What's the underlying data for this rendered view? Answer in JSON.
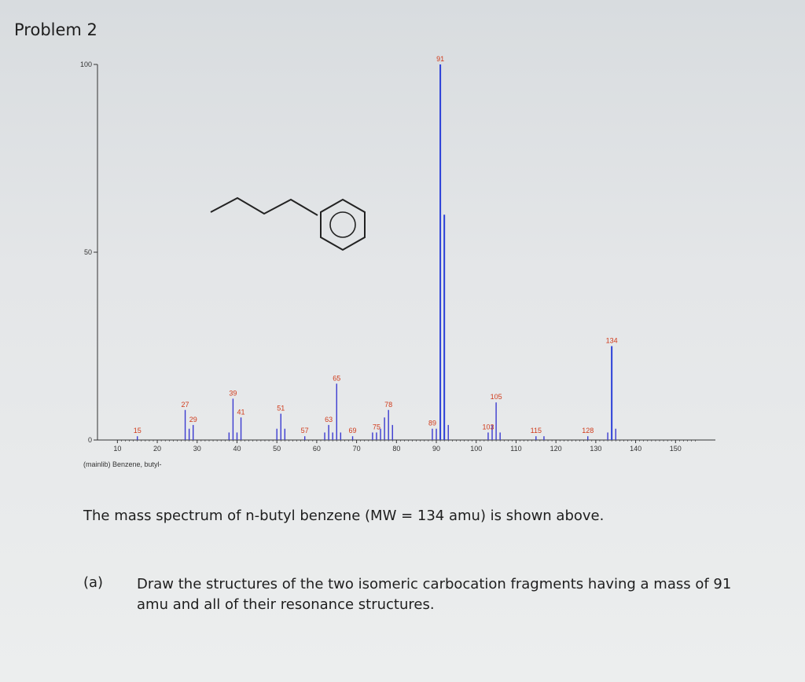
{
  "header": {
    "title": "Problem 2"
  },
  "chart_data": {
    "type": "bar",
    "title": "",
    "xlabel": "",
    "ylabel": "",
    "xlim": [
      5,
      160
    ],
    "ylim": [
      0,
      100
    ],
    "x_ticks": [
      10,
      20,
      30,
      40,
      50,
      60,
      70,
      80,
      90,
      100,
      110,
      120,
      130,
      140,
      150
    ],
    "y_ticks": [
      0,
      50,
      100
    ],
    "library_label": "(mainlib) Benzene, butyl-",
    "colors": {
      "major": "#2a3fd8",
      "minor": "#3a3ad0",
      "label": "#d03a1a",
      "axis": "#333333"
    },
    "peaks": [
      {
        "mz": 15,
        "intensity": 1,
        "label": "15"
      },
      {
        "mz": 27,
        "intensity": 8,
        "label": "27"
      },
      {
        "mz": 28,
        "intensity": 3
      },
      {
        "mz": 29,
        "intensity": 4,
        "label": "29"
      },
      {
        "mz": 38,
        "intensity": 2
      },
      {
        "mz": 39,
        "intensity": 11,
        "label": "39"
      },
      {
        "mz": 40,
        "intensity": 2
      },
      {
        "mz": 41,
        "intensity": 6,
        "label": "41"
      },
      {
        "mz": 50,
        "intensity": 3
      },
      {
        "mz": 51,
        "intensity": 7,
        "label": "51"
      },
      {
        "mz": 52,
        "intensity": 3
      },
      {
        "mz": 57,
        "intensity": 1,
        "label": "57"
      },
      {
        "mz": 62,
        "intensity": 2
      },
      {
        "mz": 63,
        "intensity": 4,
        "label": "63"
      },
      {
        "mz": 64,
        "intensity": 2
      },
      {
        "mz": 65,
        "intensity": 15,
        "label": "65"
      },
      {
        "mz": 66,
        "intensity": 2
      },
      {
        "mz": 69,
        "intensity": 1,
        "label": "69"
      },
      {
        "mz": 74,
        "intensity": 2
      },
      {
        "mz": 75,
        "intensity": 2,
        "label": "75"
      },
      {
        "mz": 76,
        "intensity": 3
      },
      {
        "mz": 77,
        "intensity": 6
      },
      {
        "mz": 78,
        "intensity": 8,
        "label": "78"
      },
      {
        "mz": 79,
        "intensity": 4
      },
      {
        "mz": 89,
        "intensity": 3,
        "label": "89"
      },
      {
        "mz": 90,
        "intensity": 3
      },
      {
        "mz": 91,
        "intensity": 100,
        "label": "91"
      },
      {
        "mz": 92,
        "intensity": 60
      },
      {
        "mz": 93,
        "intensity": 4
      },
      {
        "mz": 103,
        "intensity": 2,
        "label": "103"
      },
      {
        "mz": 104,
        "intensity": 4
      },
      {
        "mz": 105,
        "intensity": 10,
        "label": "105"
      },
      {
        "mz": 106,
        "intensity": 2
      },
      {
        "mz": 115,
        "intensity": 1,
        "label": "115"
      },
      {
        "mz": 117,
        "intensity": 1
      },
      {
        "mz": 128,
        "intensity": 1,
        "label": "128"
      },
      {
        "mz": 133,
        "intensity": 2
      },
      {
        "mz": 134,
        "intensity": 25,
        "label": "134"
      },
      {
        "mz": 135,
        "intensity": 3
      }
    ]
  },
  "caption": "The mass spectrum of n-butyl benzene (MW = 134 amu) is shown above.",
  "question": {
    "label": "(a)",
    "text": "Draw the structures of the two isomeric carbocation fragments having a mass of 91 amu and all of their resonance structures."
  }
}
